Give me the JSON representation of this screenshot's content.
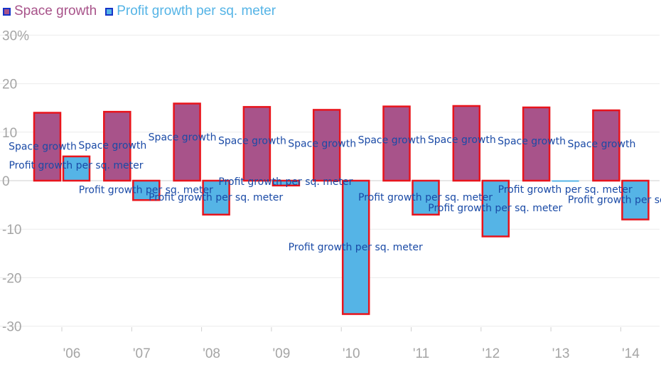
{
  "chart_data": {
    "type": "bar",
    "categories": [
      "'06",
      "'07",
      "'08",
      "'09",
      "'10",
      "'11",
      "'12",
      "'13",
      "'14"
    ],
    "series": [
      {
        "name": "Space growth",
        "color": "#a8538a",
        "values": [
          14.0,
          14.2,
          15.9,
          15.2,
          14.6,
          15.3,
          15.4,
          15.1,
          14.5
        ]
      },
      {
        "name": "Profit growth per sq. meter",
        "color": "#55b4e6",
        "values": [
          5.0,
          -4.0,
          -7.0,
          -1.0,
          -27.5,
          -7.0,
          -11.5,
          0.0,
          -8.0
        ]
      }
    ],
    "bar_label": "Space growth",
    "bar_label_2": "Profit growth per sq. meter",
    "ylim": [
      -32,
      32
    ],
    "yticks": [
      "30%",
      "20",
      "10",
      "0",
      "-10",
      "-20",
      "-30"
    ],
    "ytick_values": [
      30,
      20,
      10,
      0,
      -10,
      -20,
      -30
    ],
    "xlabel": "",
    "ylabel": "",
    "grid": true,
    "legend_position": "top-left",
    "bar_outline_color": "#e8141c"
  }
}
